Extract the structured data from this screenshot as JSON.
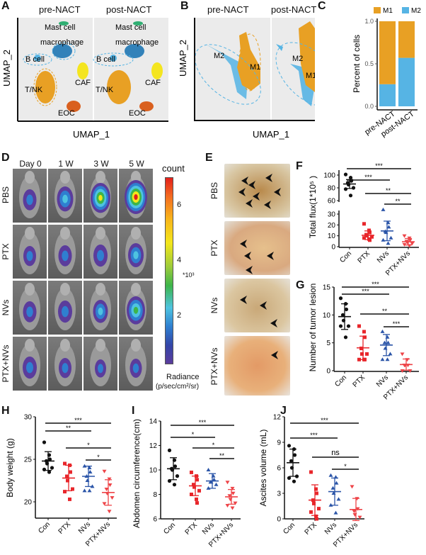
{
  "panel_labels": [
    "A",
    "B",
    "C",
    "D",
    "E",
    "F",
    "G",
    "H",
    "I",
    "J"
  ],
  "panel_a": {
    "conditions": [
      "pre-NACT",
      "post-NACT"
    ],
    "xlabel": "UMAP_1",
    "ylabel": "UMAP_2",
    "clusters": [
      "Mast cell",
      "macrophage",
      "B cell",
      "T/NK",
      "CAF",
      "EOC"
    ]
  },
  "panel_b": {
    "conditions": [
      "pre-NACT",
      "post-NACT"
    ],
    "xlabel": "UMAP_1",
    "ylabel": "UMAP_2",
    "clusters": [
      "M2",
      "M1"
    ]
  },
  "panel_d": {
    "timepoints": [
      "Day 0",
      "1 W",
      "3 W",
      "5 W"
    ],
    "groups": [
      "PBS",
      "PTX",
      "NVs",
      "PTX+NVs"
    ],
    "colorbar_title": "count",
    "colorbar_ticks": [
      "6",
      "4",
      "2"
    ],
    "colorbar_multiplier": "*10³",
    "colorbar_unit_line1": "Radiance",
    "colorbar_unit_line2": "(p/sec/cm²/sr)"
  },
  "panel_e": {
    "groups": [
      "PBS",
      "PTX",
      "NVs",
      "PTX+NVs"
    ]
  },
  "colors": {
    "M1": "#e8a024",
    "M2": "#56b4e4",
    "Con": "#111111",
    "PTX": "#e8262b",
    "NVs": "#2b55a8",
    "PTX+NVs": "#ee4448",
    "umap_bg": "#ebebeb"
  },
  "chart_data": [
    {
      "id": "C",
      "type": "bar",
      "stacked": true,
      "categories": [
        "pre-NACT",
        "post-NACT"
      ],
      "series": [
        {
          "name": "M1",
          "values": [
            0.74,
            0.43
          ]
        },
        {
          "name": "M2",
          "values": [
            0.26,
            0.57
          ]
        }
      ],
      "ylabel": "Percent of cells",
      "ylim": [
        0,
        1
      ],
      "yticks": [
        "0.0",
        "0.5",
        "1.0"
      ],
      "legend": "top"
    },
    {
      "id": "F",
      "type": "scatter",
      "ylabel": "Total flux(1*10⁵ )",
      "broken_axis": true,
      "ylim_lower": [
        0,
        35
      ],
      "ylim_upper": [
        60,
        108
      ],
      "yticks": [
        0,
        10,
        20,
        30,
        60,
        80,
        100
      ],
      "categories": [
        "Con",
        "PTX",
        "NVs",
        "PTX+NVs"
      ],
      "groups": [
        {
          "name": "Con",
          "mean": 86,
          "sd": 7,
          "points": [
            101,
            96,
            91,
            88,
            85,
            80,
            78,
            68
          ]
        },
        {
          "name": "PTX",
          "mean": 10.5,
          "sd": 4,
          "points": [
            21,
            15,
            13,
            11,
            10,
            9,
            8,
            7,
            6
          ]
        },
        {
          "name": "NVs",
          "mean": 14.5,
          "sd": 9,
          "points": [
            34,
            22,
            18,
            14,
            13,
            8,
            6,
            3
          ]
        },
        {
          "name": "PTX+NVs",
          "mean": 4.5,
          "sd": 3,
          "points": [
            10,
            8,
            6,
            5,
            4,
            3,
            2,
            1
          ]
        }
      ],
      "significance": [
        {
          "from": "Con",
          "to": "PTX+NVs",
          "label": "***"
        },
        {
          "from": "Con",
          "to": "NVs",
          "label": "***"
        },
        {
          "from": "PTX",
          "to": "PTX+NVs",
          "label": "**"
        },
        {
          "from": "NVs",
          "to": "PTX+NVs",
          "label": "**"
        }
      ]
    },
    {
      "id": "G",
      "type": "scatter",
      "ylabel": "Number of tumor lesion",
      "ylim": [
        0,
        15
      ],
      "yticks": [
        0,
        5,
        10,
        15
      ],
      "categories": [
        "Con",
        "PTX",
        "NVs",
        "PTX+NVs"
      ],
      "groups": [
        {
          "name": "Con",
          "mean": 9.7,
          "sd": 2.3,
          "points": [
            13,
            12,
            11,
            10,
            9,
            8,
            8,
            6
          ]
        },
        {
          "name": "PTX",
          "mean": 4.1,
          "sd": 2.1,
          "points": [
            8,
            7,
            6,
            4,
            3,
            3,
            2,
            2,
            2
          ]
        },
        {
          "name": "NVs",
          "mean": 4.6,
          "sd": 1.9,
          "points": [
            7,
            6,
            5,
            5,
            4,
            3,
            2,
            2
          ]
        },
        {
          "name": "PTX+NVs",
          "mean": 1.1,
          "sd": 1.0,
          "points": [
            3,
            2,
            1,
            1,
            1,
            0,
            0
          ]
        }
      ],
      "significance": [
        {
          "from": "Con",
          "to": "PTX+NVs",
          "label": "***"
        },
        {
          "from": "Con",
          "to": "NVs",
          "label": "***"
        },
        {
          "from": "PTX",
          "to": "PTX+NVs",
          "label": "**"
        },
        {
          "from": "NVs",
          "to": "PTX+NVs",
          "label": "***"
        }
      ]
    },
    {
      "id": "H",
      "type": "scatter",
      "ylabel": "Body weight (g)",
      "ylim": [
        18,
        30
      ],
      "yticks": [
        20,
        25,
        30
      ],
      "categories": [
        "Con",
        "PTX",
        "NVs",
        "PTX+NVs"
      ],
      "groups": [
        {
          "name": "Con",
          "mean": 24.8,
          "sd": 1.1,
          "points": [
            27,
            25.5,
            25,
            24.8,
            24.5,
            24,
            23.8,
            23.5
          ]
        },
        {
          "name": "PTX",
          "mean": 22.8,
          "sd": 1.5,
          "points": [
            24.5,
            24.3,
            23.5,
            23,
            22.5,
            21.5,
            21.2,
            20.3
          ]
        },
        {
          "name": "NVs",
          "mean": 23.0,
          "sd": 1.2,
          "points": [
            24.2,
            24,
            23.5,
            23,
            22.5,
            21.8,
            21.3,
            21.3
          ]
        },
        {
          "name": "PTX+NVs",
          "mean": 21.1,
          "sd": 1.5,
          "points": [
            23.6,
            22.7,
            22,
            21.5,
            21,
            20.5,
            19.8,
            18.9
          ]
        }
      ],
      "significance": [
        {
          "from": "Con",
          "to": "PTX+NVs",
          "label": "***"
        },
        {
          "from": "Con",
          "to": "NVs",
          "label": "**"
        },
        {
          "from": "PTX",
          "to": "PTX+NVs",
          "label": "*"
        },
        {
          "from": "NVs",
          "to": "PTX+NVs",
          "label": "*"
        }
      ]
    },
    {
      "id": "I",
      "type": "scatter",
      "ylabel": "Abdomen circumference(cm)",
      "ylim": [
        6,
        14
      ],
      "yticks": [
        6,
        8,
        10,
        12,
        14
      ],
      "categories": [
        "Con",
        "PTX",
        "NVs",
        "PTX+NVs"
      ],
      "groups": [
        {
          "name": "Con",
          "mean": 10.1,
          "sd": 0.9,
          "points": [
            11.6,
            10.8,
            10.3,
            10.1,
            10,
            9.5,
            9.1,
            8.8
          ]
        },
        {
          "name": "PTX",
          "mean": 8.7,
          "sd": 0.8,
          "points": [
            9.8,
            9.5,
            9.2,
            8.8,
            8.6,
            8.3,
            8,
            7.6,
            7.3
          ]
        },
        {
          "name": "NVs",
          "mean": 9.1,
          "sd": 0.6,
          "points": [
            10,
            9.5,
            9.2,
            9,
            9,
            8.8,
            8.5
          ]
        },
        {
          "name": "PTX+NVs",
          "mean": 7.8,
          "sd": 0.6,
          "points": [
            9,
            8.5,
            8.1,
            7.9,
            7.6,
            7.3,
            7.1,
            6.9
          ]
        }
      ],
      "significance": [
        {
          "from": "Con",
          "to": "PTX+NVs",
          "label": "***"
        },
        {
          "from": "Con",
          "to": "NVs",
          "label": "*"
        },
        {
          "from": "PTX",
          "to": "PTX+NVs",
          "label": "*"
        },
        {
          "from": "NVs",
          "to": "PTX+NVs",
          "label": "**"
        }
      ]
    },
    {
      "id": "J",
      "type": "scatter",
      "ylabel": "Ascites volume (mL)",
      "ylim": [
        0,
        12
      ],
      "yticks": [
        0,
        3,
        6,
        9,
        12
      ],
      "categories": [
        "Con",
        "PTX",
        "NVs",
        "PTX+NVs"
      ],
      "groups": [
        {
          "name": "Con",
          "mean": 6.6,
          "sd": 1.6,
          "points": [
            8.6,
            8.2,
            7.5,
            6.8,
            6,
            5,
            4.8,
            4.4
          ]
        },
        {
          "name": "PTX",
          "mean": 2.2,
          "sd": 1.8,
          "points": [
            5.5,
            3.5,
            3,
            2.2,
            1.8,
            1.2,
            0.8,
            0.3,
            0
          ]
        },
        {
          "name": "NVs",
          "mean": 3.2,
          "sd": 1.6,
          "points": [
            5.1,
            4.9,
            4.2,
            3.6,
            3,
            2.3,
            1.6,
            0.7
          ]
        },
        {
          "name": "PTX+NVs",
          "mean": 1.1,
          "sd": 1.3,
          "points": [
            3.8,
            2.4,
            1.2,
            0.9,
            0.5,
            0.2
          ]
        }
      ],
      "significance": [
        {
          "from": "Con",
          "to": "PTX+NVs",
          "label": "***"
        },
        {
          "from": "Con",
          "to": "NVs",
          "label": "***"
        },
        {
          "from": "PTX",
          "to": "PTX+NVs",
          "label": "ns"
        },
        {
          "from": "NVs",
          "to": "PTX+NVs",
          "label": "*"
        }
      ]
    },
    {
      "id": "D",
      "type": "heatmap",
      "rows": [
        "PBS",
        "PTX",
        "NVs",
        "PTX+NVs"
      ],
      "columns": [
        "Day 0",
        "1 W",
        "3 W",
        "5 W"
      ],
      "bli_intensity": [
        [
          0.35,
          0.55,
          0.8,
          1.0
        ],
        [
          0.3,
          0.35,
          0.4,
          0.5
        ],
        [
          0.35,
          0.4,
          0.45,
          0.7
        ],
        [
          0.4,
          0.3,
          0.2,
          0.25
        ]
      ]
    }
  ]
}
